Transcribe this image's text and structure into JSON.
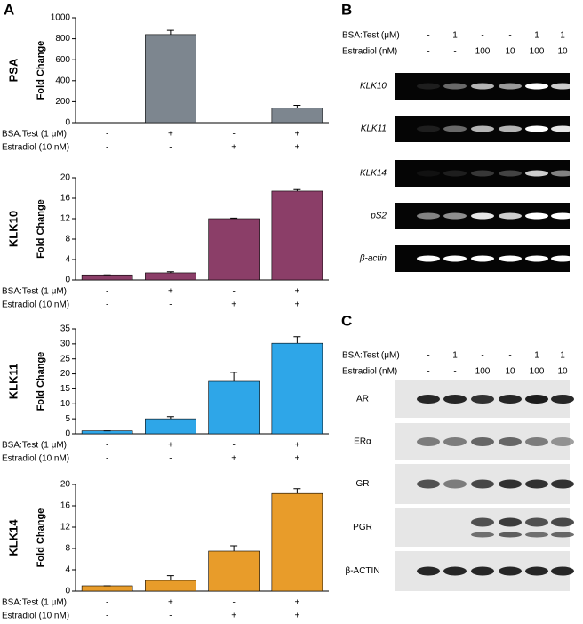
{
  "panel_labels": [
    "A",
    "B",
    "C"
  ],
  "chart_data": [
    {
      "type": "bar",
      "title": "PSA",
      "ylabel": "Fold Change",
      "color": "#7d868f",
      "values": [
        0,
        840,
        0,
        140
      ],
      "errors": [
        0,
        40,
        0,
        25
      ],
      "ylim": [
        0,
        1000
      ],
      "yticks": [
        0,
        200,
        400,
        600,
        800,
        1000
      ],
      "conditions": [
        {
          "label": "BSA:Test (1 μM)",
          "values": [
            "-",
            "+",
            "-",
            "+"
          ]
        },
        {
          "label": "Estradiol (10 nM)",
          "values": [
            "-",
            "-",
            "+",
            "+"
          ]
        }
      ]
    },
    {
      "type": "bar",
      "title": "KLK10",
      "ylabel": "Fold Change",
      "color": "#8b3e68",
      "values": [
        1,
        1.4,
        12,
        17.4
      ],
      "errors": [
        0,
        0.2,
        0.1,
        0.3
      ],
      "ylim": [
        0,
        20
      ],
      "yticks": [
        0,
        4,
        8,
        12,
        16,
        20
      ],
      "conditions": [
        {
          "label": "BSA:Test (1 μM)",
          "values": [
            "-",
            "+",
            "-",
            "+"
          ]
        },
        {
          "label": "Estradiol (10 nM)",
          "values": [
            "-",
            "-",
            "+",
            "+"
          ]
        }
      ]
    },
    {
      "type": "bar",
      "title": "KLK11",
      "ylabel": "Fold Change",
      "color": "#2ea6e8",
      "values": [
        1,
        5,
        17.5,
        30.2
      ],
      "errors": [
        0,
        0.7,
        3,
        2.2
      ],
      "ylim": [
        0,
        35
      ],
      "yticks": [
        0,
        5,
        10,
        15,
        20,
        25,
        30,
        35
      ],
      "conditions": [
        {
          "label": "BSA:Test (1 μM)",
          "values": [
            "-",
            "+",
            "-",
            "+"
          ]
        },
        {
          "label": "Estradiol (10 nM)",
          "values": [
            "-",
            "-",
            "+",
            "+"
          ]
        }
      ]
    },
    {
      "type": "bar",
      "title": "KLK14",
      "ylabel": "Fold Change",
      "color": "#e89c2a",
      "values": [
        1,
        2,
        7.5,
        18.3
      ],
      "errors": [
        0,
        0.9,
        1,
        0.9
      ],
      "ylim": [
        0,
        20
      ],
      "yticks": [
        0,
        4,
        8,
        12,
        16,
        20
      ],
      "conditions": [
        {
          "label": "BSA:Test (1 μM)",
          "values": [
            "-",
            "+",
            "-",
            "+"
          ]
        },
        {
          "label": "Estradiol (10 nM)",
          "values": [
            "-",
            "-",
            "+",
            "+"
          ]
        }
      ]
    }
  ],
  "gels": [
    {
      "conditions": [
        {
          "label": "BSA:Test (μM)",
          "values": [
            "-",
            "1",
            "-",
            "-",
            "1",
            "1"
          ]
        },
        {
          "label": "Estradiol (nM)",
          "values": [
            "-",
            "-",
            "100",
            "10",
            "100",
            "10"
          ]
        }
      ],
      "rows": [
        "KLK10",
        "KLK11",
        "KLK14",
        "pS2",
        "β-actin"
      ]
    },
    {
      "conditions": [
        {
          "label": "BSA:Test (μM)",
          "values": [
            "-",
            "1",
            "-",
            "-",
            "1",
            "1"
          ]
        },
        {
          "label": "Estradiol (nM)",
          "values": [
            "-",
            "-",
            "100",
            "10",
            "100",
            "10"
          ]
        }
      ],
      "rows": [
        "AR",
        "ERα",
        "GR",
        "PGR",
        "β-ACTIN"
      ]
    }
  ]
}
